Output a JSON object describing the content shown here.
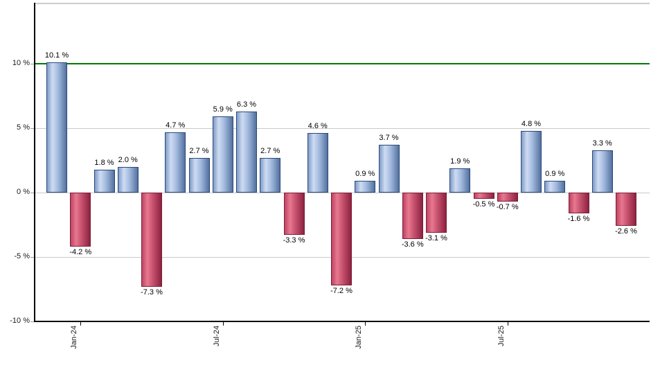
{
  "chart_data": {
    "type": "bar",
    "title": "",
    "unit": "%",
    "xlabel": "",
    "ylabel": "",
    "ylim": [
      -10,
      15
    ],
    "grid": "horizontal-gray",
    "legend": "none",
    "highlight_line": {
      "value": 10,
      "color": "#007a00"
    },
    "y_ticks": [
      {
        "label": "10 %",
        "value": 10,
        "grid": "highlight"
      },
      {
        "label": "5 %",
        "value": 5,
        "grid": "gray"
      },
      {
        "label": "0 %",
        "value": 0,
        "grid": "gray"
      },
      {
        "label": "-5 %",
        "value": -5,
        "grid": "gray"
      },
      {
        "label": "-10 %",
        "value": -10,
        "grid": "none"
      }
    ],
    "x_ticks": [
      {
        "label": "Jan-24",
        "bar_index": 1
      },
      {
        "label": "Jul-24",
        "bar_index": 7
      },
      {
        "label": "Jan-25",
        "bar_index": 13
      },
      {
        "label": "Jul-25",
        "bar_index": 19
      }
    ],
    "bars": [
      {
        "month": "Dec-23",
        "value": 10.1,
        "label": "10.1 %",
        "color": "blue"
      },
      {
        "month": "Jan-24",
        "value": -4.2,
        "label": "-4.2 %",
        "color": "red"
      },
      {
        "month": "Feb-24",
        "value": 1.8,
        "label": "1.8 %",
        "color": "blue"
      },
      {
        "month": "Mar-24",
        "value": 2.0,
        "label": "2.0 %",
        "color": "blue"
      },
      {
        "month": "Apr-24",
        "value": -7.3,
        "label": "-7.3 %",
        "color": "red"
      },
      {
        "month": "May-24",
        "value": 4.7,
        "label": "4.7 %",
        "color": "blue"
      },
      {
        "month": "Jun-24",
        "value": 2.7,
        "label": "2.7 %",
        "color": "blue"
      },
      {
        "month": "Jul-24",
        "value": 5.9,
        "label": "5.9 %",
        "color": "blue"
      },
      {
        "month": "Aug-24",
        "value": 6.3,
        "label": "6.3 %",
        "color": "blue"
      },
      {
        "month": "Sep-24",
        "value": 2.7,
        "label": "2.7 %",
        "color": "blue"
      },
      {
        "month": "Oct-24",
        "value": -3.3,
        "label": "-3.3 %",
        "color": "red"
      },
      {
        "month": "Nov-24",
        "value": 4.6,
        "label": "4.6 %",
        "color": "blue"
      },
      {
        "month": "Dec-24",
        "value": -7.2,
        "label": "-7.2 %",
        "color": "red"
      },
      {
        "month": "Jan-25",
        "value": 0.9,
        "label": "0.9 %",
        "color": "blue"
      },
      {
        "month": "Feb-25",
        "value": 3.7,
        "label": "3.7 %",
        "color": "blue"
      },
      {
        "month": "Mar-25",
        "value": -3.6,
        "label": "-3.6 %",
        "color": "red"
      },
      {
        "month": "Apr-25",
        "value": -3.1,
        "label": "-3.1 %",
        "color": "red"
      },
      {
        "month": "May-25",
        "value": 1.9,
        "label": "1.9 %",
        "color": "blue"
      },
      {
        "month": "Jun-25",
        "value": -0.5,
        "label": "-0.5 %",
        "color": "red"
      },
      {
        "month": "Jul-25",
        "value": -0.7,
        "label": "-0.7 %",
        "color": "red"
      },
      {
        "month": "Aug-25",
        "value": 4.8,
        "label": "4.8 %",
        "color": "blue"
      },
      {
        "month": "Sep-25",
        "value": 0.9,
        "label": "0.9 %",
        "color": "blue"
      },
      {
        "month": "Oct-25",
        "value": -1.6,
        "label": "-1.6 %",
        "color": "red"
      },
      {
        "month": "Nov-25",
        "value": 3.3,
        "label": "3.3 %",
        "color": "blue"
      },
      {
        "month": "Dec-25",
        "value": -2.6,
        "label": "-2.6 %",
        "color": "red"
      }
    ],
    "colors": {
      "positive_fill_light": "#cfdcf2",
      "positive_fill_dark": "#53719f",
      "positive_border": "#2b4878",
      "negative_fill_light": "#e87890",
      "negative_fill_dark": "#8c2240",
      "negative_border": "#7a1f38",
      "highlight_line": "#007a00",
      "gridline": "#c9c9c9",
      "axis": "#000000",
      "background": "#ffffff"
    }
  }
}
